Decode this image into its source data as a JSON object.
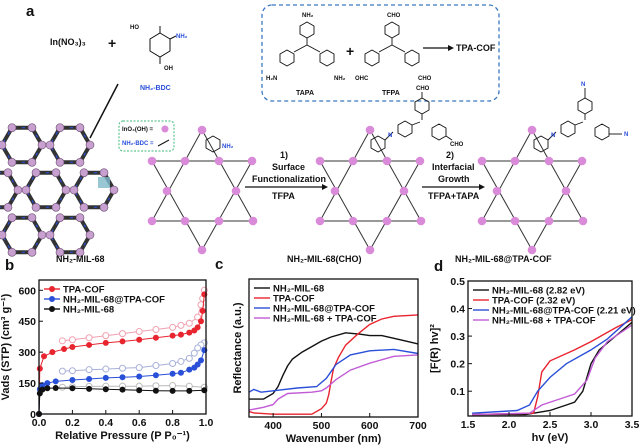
{
  "panel_a": {
    "label": "a",
    "reagent_metal": "In(NO₃)₃",
    "plus": "+",
    "linker_name": "NH₂-BDC",
    "cof_box": {
      "monomer1": "TAPA",
      "monomer2": "TFPA",
      "product": "TPA-COF",
      "plus": "+",
      "border_color": "#3a78c0"
    },
    "legend_box": {
      "node": "InO₄(OH) =",
      "linker": "NH₂-BDC =",
      "border_color": "#3fb87a"
    },
    "groups": {
      "amine": "NH₂",
      "aldehyde": "CHO",
      "hydroxyl": "HO",
      "acid_oh": "OH",
      "amine_left": "H₂N",
      "aldehyde_left": "OHC",
      "imine_n": "N"
    },
    "step1": {
      "number": "1)",
      "line1": "Surface",
      "line2": "Functionalization",
      "reagent": "TFPA"
    },
    "step2": {
      "number": "2)",
      "line1": "Interfacial",
      "line2": "Growth",
      "reagent": "TFPA+TAPA"
    },
    "structures": [
      "NH₂-MIL-68",
      "NH₂-MIL-68(CHO)",
      "NH₂-MIL-68@TPA-COF"
    ],
    "node_color": "#d98ad8"
  },
  "chart_data": [
    {
      "panel": "b",
      "type": "scatter",
      "xlabel": "Relative Pressure (P P₀⁻¹)",
      "ylabel": "Vads (STP) (cm³ g⁻¹)",
      "xlim": [
        0,
        1.0
      ],
      "ylim": [
        0,
        650
      ],
      "xticks": [
        "0.0",
        "0.2",
        "0.4",
        "0.6",
        "0.8",
        "1.0"
      ],
      "yticks": [
        "0",
        "150",
        "300",
        "450",
        "600"
      ],
      "legend_placement": "top-left",
      "series": [
        {
          "name": "TPA-COF",
          "color": "#e8242f",
          "open_color": "#f0a0b0",
          "adsorption": [
            [
              0,
              0
            ],
            [
              0.005,
              220
            ],
            [
              0.03,
              280
            ],
            [
              0.08,
              300
            ],
            [
              0.15,
              315
            ],
            [
              0.2,
              325
            ],
            [
              0.3,
              335
            ],
            [
              0.4,
              345
            ],
            [
              0.5,
              352
            ],
            [
              0.6,
              360
            ],
            [
              0.7,
              370
            ],
            [
              0.8,
              380
            ],
            [
              0.85,
              385
            ],
            [
              0.9,
              395
            ],
            [
              0.93,
              405
            ],
            [
              0.95,
              420
            ],
            [
              0.97,
              450
            ],
            [
              0.98,
              500
            ],
            [
              0.99,
              580
            ]
          ],
          "desorption": [
            [
              0.99,
              600
            ],
            [
              0.98,
              560
            ],
            [
              0.97,
              530
            ],
            [
              0.95,
              470
            ],
            [
              0.9,
              440
            ],
            [
              0.85,
              430
            ],
            [
              0.8,
              420
            ],
            [
              0.7,
              410
            ],
            [
              0.6,
              400
            ],
            [
              0.5,
              390
            ],
            [
              0.4,
              380
            ],
            [
              0.3,
              370
            ],
            [
              0.2,
              360
            ],
            [
              0.14,
              355
            ]
          ]
        },
        {
          "name": "NH₂-MIL-68@TPA-COF",
          "color": "#2a4fd8",
          "open_color": "#a8b0d8",
          "adsorption": [
            [
              0,
              0
            ],
            [
              0.005,
              120
            ],
            [
              0.02,
              140
            ],
            [
              0.05,
              150
            ],
            [
              0.1,
              158
            ],
            [
              0.2,
              165
            ],
            [
              0.3,
              170
            ],
            [
              0.4,
              175
            ],
            [
              0.5,
              178
            ],
            [
              0.6,
              182
            ],
            [
              0.7,
              188
            ],
            [
              0.8,
              195
            ],
            [
              0.85,
              200
            ],
            [
              0.9,
              215
            ],
            [
              0.93,
              225
            ],
            [
              0.95,
              240
            ],
            [
              0.97,
              260
            ],
            [
              0.99,
              310
            ]
          ],
          "desorption": [
            [
              0.99,
              345
            ],
            [
              0.97,
              335
            ],
            [
              0.95,
              320
            ],
            [
              0.93,
              295
            ],
            [
              0.9,
              270
            ],
            [
              0.85,
              255
            ],
            [
              0.8,
              245
            ],
            [
              0.7,
              235
            ],
            [
              0.6,
              225
            ],
            [
              0.5,
              222
            ],
            [
              0.4,
              218
            ],
            [
              0.3,
              215
            ],
            [
              0.2,
              210
            ],
            [
              0.14,
              208
            ]
          ]
        },
        {
          "name": "NH₂-MIL-68",
          "color": "#111111",
          "open_color": "#bbbbbb",
          "adsorption": [
            [
              0,
              0
            ],
            [
              0.005,
              100
            ],
            [
              0.02,
              118
            ],
            [
              0.05,
              125
            ],
            [
              0.1,
              126
            ],
            [
              0.2,
              125
            ],
            [
              0.3,
              122
            ],
            [
              0.4,
              120
            ],
            [
              0.5,
              118
            ],
            [
              0.6,
              115
            ],
            [
              0.7,
              113
            ],
            [
              0.8,
              112
            ],
            [
              0.9,
              112
            ],
            [
              0.99,
              115
            ]
          ],
          "desorption": [
            [
              0.99,
              130
            ],
            [
              0.9,
              135
            ],
            [
              0.8,
              138
            ],
            [
              0.7,
              137
            ],
            [
              0.6,
              135
            ],
            [
              0.5,
              135
            ],
            [
              0.4,
              135
            ],
            [
              0.3,
              134
            ],
            [
              0.2,
              132
            ],
            [
              0.14,
              130
            ]
          ]
        }
      ]
    },
    {
      "panel": "c",
      "type": "line",
      "xlabel": "Wavenumber (nm)",
      "ylabel": "Reflectance (a.u.)",
      "xlim": [
        350,
        700
      ],
      "ylim": [
        0,
        1
      ],
      "xticks": [
        "400",
        "500",
        "600",
        "700"
      ],
      "legend_placement": "top-left",
      "series": [
        {
          "name": "NH₂-MIL-68",
          "color": "#111111",
          "points": [
            [
              350,
              0.13
            ],
            [
              380,
              0.13
            ],
            [
              400,
              0.17
            ],
            [
              410,
              0.22
            ],
            [
              420,
              0.3
            ],
            [
              430,
              0.37
            ],
            [
              440,
              0.42
            ],
            [
              460,
              0.47
            ],
            [
              480,
              0.51
            ],
            [
              500,
              0.55
            ],
            [
              520,
              0.58
            ],
            [
              550,
              0.61
            ],
            [
              580,
              0.6
            ],
            [
              600,
              0.59
            ],
            [
              625,
              0.59
            ],
            [
              650,
              0.57
            ],
            [
              675,
              0.55
            ],
            [
              700,
              0.53
            ]
          ]
        },
        {
          "name": "TPA-COF",
          "color": "#e8242f",
          "points": [
            [
              350,
              0.04
            ],
            [
              360,
              0.03
            ],
            [
              400,
              0.02
            ],
            [
              480,
              0.02
            ],
            [
              500,
              0.06
            ],
            [
              510,
              0.1
            ],
            [
              515,
              0.16
            ],
            [
              520,
              0.26
            ],
            [
              525,
              0.35
            ],
            [
              535,
              0.43
            ],
            [
              550,
              0.52
            ],
            [
              575,
              0.6
            ],
            [
              600,
              0.67
            ],
            [
              625,
              0.71
            ],
            [
              650,
              0.73
            ],
            [
              700,
              0.74
            ]
          ]
        },
        {
          "name": "NH₂-MIL-68@TPA-COF",
          "color": "#2a4fd8",
          "points": [
            [
              350,
              0.18
            ],
            [
              360,
              0.2
            ],
            [
              375,
              0.18
            ],
            [
              400,
              0.19
            ],
            [
              450,
              0.21
            ],
            [
              490,
              0.22
            ],
            [
              510,
              0.28
            ],
            [
              530,
              0.38
            ],
            [
              560,
              0.45
            ],
            [
              600,
              0.48
            ],
            [
              650,
              0.49
            ],
            [
              700,
              0.46
            ]
          ]
        },
        {
          "name": "NH₂-MIL-68 + TPA-COF",
          "color": "#c25cd6",
          "points": [
            [
              350,
              0.05
            ],
            [
              380,
              0.07
            ],
            [
              400,
              0.09
            ],
            [
              410,
              0.13
            ],
            [
              430,
              0.17
            ],
            [
              480,
              0.18
            ],
            [
              500,
              0.19
            ],
            [
              510,
              0.21
            ],
            [
              530,
              0.27
            ],
            [
              560,
              0.34
            ],
            [
              600,
              0.39
            ],
            [
              650,
              0.44
            ],
            [
              700,
              0.45
            ]
          ]
        }
      ]
    },
    {
      "panel": "d",
      "type": "line",
      "xlabel": "hv (eV)",
      "ylabel": "[F(R) hv]²",
      "xlim": [
        1.5,
        3.5
      ],
      "ylim": [
        0.01,
        0.5
      ],
      "xticks": [
        "1.5",
        "2.0",
        "2.5",
        "3.0",
        "3.5"
      ],
      "yticks": [
        "0.1",
        "0.2",
        "0.3",
        "0.4",
        "0.5"
      ],
      "legend_placement": "top-left",
      "series": [
        {
          "name": "NH₂-MIL-68 (2.82 eV)",
          "color": "#111111",
          "points": [
            [
              1.55,
              0.015
            ],
            [
              2.2,
              0.015
            ],
            [
              2.5,
              0.03
            ],
            [
              2.7,
              0.05
            ],
            [
              2.8,
              0.06
            ],
            [
              2.9,
              0.1
            ],
            [
              3.0,
              0.2
            ],
            [
              3.1,
              0.25
            ],
            [
              3.3,
              0.3
            ],
            [
              3.5,
              0.35
            ]
          ]
        },
        {
          "name": "TPA-COF (2.32 eV)",
          "color": "#e8242f",
          "points": [
            [
              1.55,
              0.015
            ],
            [
              2.3,
              0.02
            ],
            [
              2.35,
              0.08
            ],
            [
              2.4,
              0.17
            ],
            [
              2.5,
              0.21
            ],
            [
              2.8,
              0.25
            ],
            [
              3.0,
              0.28
            ],
            [
              3.3,
              0.33
            ],
            [
              3.5,
              0.36
            ]
          ]
        },
        {
          "name": "NH₂-MIL-68@TPA-COF (2.21 eV)",
          "color": "#2a4fd8",
          "points": [
            [
              1.55,
              0.02
            ],
            [
              2.1,
              0.03
            ],
            [
              2.25,
              0.05
            ],
            [
              2.35,
              0.1
            ],
            [
              2.5,
              0.15
            ],
            [
              2.7,
              0.2
            ],
            [
              3.0,
              0.25
            ],
            [
              3.2,
              0.29
            ],
            [
              3.5,
              0.37
            ]
          ]
        },
        {
          "name": "NH₂-MIL-68 + TPA-COF",
          "color": "#c25cd6",
          "points": [
            [
              1.55,
              0.015
            ],
            [
              2.25,
              0.02
            ],
            [
              2.4,
              0.05
            ],
            [
              2.6,
              0.07
            ],
            [
              2.8,
              0.09
            ],
            [
              2.95,
              0.14
            ],
            [
              3.05,
              0.22
            ],
            [
              3.2,
              0.28
            ],
            [
              3.5,
              0.34
            ]
          ]
        }
      ]
    }
  ]
}
